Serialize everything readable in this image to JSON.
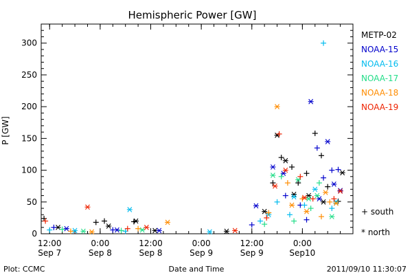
{
  "chart_data": {
    "type": "scatter",
    "title": "Hemispheric Power [GW]",
    "xlabel": "Date and Time",
    "ylabel": "P [GW]",
    "ylim": [
      0,
      330
    ],
    "xlim": [
      "2011-09-07 10:00",
      "2011-09-10 12:00"
    ],
    "yticks": [
      0,
      50,
      100,
      150,
      200,
      250,
      300
    ],
    "xticks": [
      {
        "time": "2011-09-07 12:00",
        "line1": "12:00",
        "line2": "Sep 7"
      },
      {
        "time": "2011-09-08 00:00",
        "line1": "0:00",
        "line2": "Sep 8"
      },
      {
        "time": "2011-09-08 12:00",
        "line1": "12:00",
        "line2": "Sep 8"
      },
      {
        "time": "2011-09-09 00:00",
        "line1": "0:00",
        "line2": "Sep 9"
      },
      {
        "time": "2011-09-09 12:00",
        "line1": "12:00",
        "line2": "Sep 9"
      },
      {
        "time": "2011-09-10 00:00",
        "line1": "0:00",
        "line2": "Sep10"
      }
    ],
    "legend_placement": "right",
    "marker_legend": {
      "south": "+ south",
      "north": "* north"
    },
    "series": [
      {
        "name": "METP-02",
        "color": "#000000",
        "south": [
          [
            "2011-09-07 10:40",
            24
          ],
          [
            "2011-09-07 23:00",
            18
          ],
          [
            "2011-09-08 01:00",
            20
          ],
          [
            "2011-09-08 08:00",
            19
          ],
          [
            "2011-09-09 17:00",
            80
          ],
          [
            "2011-09-09 19:00",
            120
          ],
          [
            "2011-09-09 21:30",
            105
          ],
          [
            "2011-09-09 23:00",
            80
          ],
          [
            "2011-09-10 01:00",
            95
          ],
          [
            "2011-09-10 03:00",
            158
          ],
          [
            "2011-09-10 04:30",
            123
          ],
          [
            "2011-09-10 06:00",
            74
          ],
          [
            "2011-09-10 08:30",
            51
          ]
        ],
        "north": [
          [
            "2011-09-07 14:00",
            10
          ],
          [
            "2011-09-08 02:00",
            12
          ],
          [
            "2011-09-08 08:30",
            20
          ],
          [
            "2011-09-08 13:00",
            5
          ],
          [
            "2011-09-09 06:00",
            4
          ],
          [
            "2011-09-09 15:00",
            35
          ],
          [
            "2011-09-09 18:00",
            155
          ],
          [
            "2011-09-09 20:00",
            115
          ],
          [
            "2011-09-09 22:00",
            62
          ],
          [
            "2011-09-10 01:30",
            60
          ],
          [
            "2011-09-10 05:00",
            50
          ],
          [
            "2011-09-10 09:30",
            96
          ]
        ]
      },
      {
        "name": "NOAA-15",
        "color": "#0000cc",
        "south": [
          [
            "2011-09-07 13:00",
            10
          ],
          [
            "2011-09-08 03:00",
            6
          ],
          [
            "2011-09-09 12:00",
            14
          ],
          [
            "2011-09-09 20:00",
            60
          ],
          [
            "2011-09-09 23:30",
            45
          ],
          [
            "2011-09-10 01:00",
            22
          ],
          [
            "2011-09-10 03:30",
            135
          ],
          [
            "2011-09-10 05:00",
            88
          ],
          [
            "2011-09-10 07:00",
            100
          ],
          [
            "2011-09-10 08:30",
            101
          ]
        ],
        "north": [
          [
            "2011-09-07 16:00",
            8
          ],
          [
            "2011-09-08 04:00",
            6
          ],
          [
            "2011-09-08 14:00",
            5
          ],
          [
            "2011-09-09 13:00",
            44
          ],
          [
            "2011-09-09 17:00",
            105
          ],
          [
            "2011-09-09 19:30",
            95
          ],
          [
            "2011-09-10 02:00",
            208
          ],
          [
            "2011-09-10 04:00",
            55
          ],
          [
            "2011-09-10 06:00",
            145
          ],
          [
            "2011-09-10 07:30",
            78
          ],
          [
            "2011-09-10 09:00",
            68
          ]
        ]
      },
      {
        "name": "NOAA-16",
        "color": "#00bbee",
        "south": [
          [
            "2011-09-07 12:00",
            6
          ],
          [
            "2011-09-08 06:00",
            4
          ],
          [
            "2011-09-09 14:00",
            20
          ],
          [
            "2011-09-09 18:00",
            50
          ],
          [
            "2011-09-09 21:00",
            30
          ],
          [
            "2011-09-10 00:30",
            45
          ],
          [
            "2011-09-10 05:00",
            300
          ],
          [
            "2011-09-10 07:00",
            40
          ]
        ],
        "north": [
          [
            "2011-09-07 18:00",
            5
          ],
          [
            "2011-09-08 07:00",
            38
          ],
          [
            "2011-09-09 02:00",
            3
          ],
          [
            "2011-09-09 16:00",
            30
          ],
          [
            "2011-09-09 22:00",
            58
          ],
          [
            "2011-09-10 03:00",
            70
          ],
          [
            "2011-09-10 08:00",
            50
          ]
        ]
      },
      {
        "name": "NOAA-17",
        "color": "#22dd88",
        "south": [
          [
            "2011-09-07 15:00",
            7
          ],
          [
            "2011-09-08 05:00",
            5
          ],
          [
            "2011-09-09 15:00",
            15
          ],
          [
            "2011-09-09 19:00",
            90
          ],
          [
            "2011-09-09 22:00",
            20
          ],
          [
            "2011-09-10 02:00",
            40
          ],
          [
            "2011-09-10 04:00",
            80
          ]
        ],
        "north": [
          [
            "2011-09-07 20:00",
            4
          ],
          [
            "2011-09-08 10:00",
            6
          ],
          [
            "2011-09-09 17:00",
            92
          ],
          [
            "2011-09-09 23:00",
            85
          ],
          [
            "2011-09-10 01:30",
            55
          ],
          [
            "2011-09-10 03:30",
            60
          ],
          [
            "2011-09-10 07:00",
            27
          ]
        ]
      },
      {
        "name": "NOAA-18",
        "color": "#ff8c00",
        "south": [
          [
            "2011-09-07 17:00",
            4
          ],
          [
            "2011-09-08 09:00",
            8
          ],
          [
            "2011-09-09 16:00",
            33
          ],
          [
            "2011-09-09 20:30",
            80
          ],
          [
            "2011-09-10 00:00",
            55
          ],
          [
            "2011-09-10 04:30",
            27
          ],
          [
            "2011-09-10 06:30",
            50
          ]
        ],
        "north": [
          [
            "2011-09-07 22:00",
            3
          ],
          [
            "2011-09-08 16:00",
            18
          ],
          [
            "2011-09-09 18:00",
            200
          ],
          [
            "2011-09-09 21:30",
            45
          ],
          [
            "2011-09-10 01:00",
            35
          ],
          [
            "2011-09-10 05:30",
            65
          ],
          [
            "2011-09-10 08:00",
            48
          ]
        ]
      },
      {
        "name": "NOAA-19",
        "color": "#ee2200",
        "south": [
          [
            "2011-09-07 11:00",
            20
          ],
          [
            "2011-09-08 06:30",
            8
          ],
          [
            "2011-09-09 15:30",
            25
          ],
          [
            "2011-09-09 18:30",
            157
          ],
          [
            "2011-09-09 23:30",
            90
          ],
          [
            "2011-09-10 02:30",
            55
          ],
          [
            "2011-09-10 07:30",
            55
          ]
        ],
        "north": [
          [
            "2011-09-07 21:00",
            42
          ],
          [
            "2011-09-08 11:00",
            10
          ],
          [
            "2011-09-09 08:00",
            5
          ],
          [
            "2011-09-09 17:30",
            75
          ],
          [
            "2011-09-09 20:00",
            100
          ],
          [
            "2011-09-10 00:30",
            57
          ],
          [
            "2011-09-10 09:00",
            67
          ]
        ]
      }
    ]
  },
  "footer": {
    "plot_credit": "Plot: CCMC",
    "timestamp": "2011/09/10 11:30:07"
  }
}
